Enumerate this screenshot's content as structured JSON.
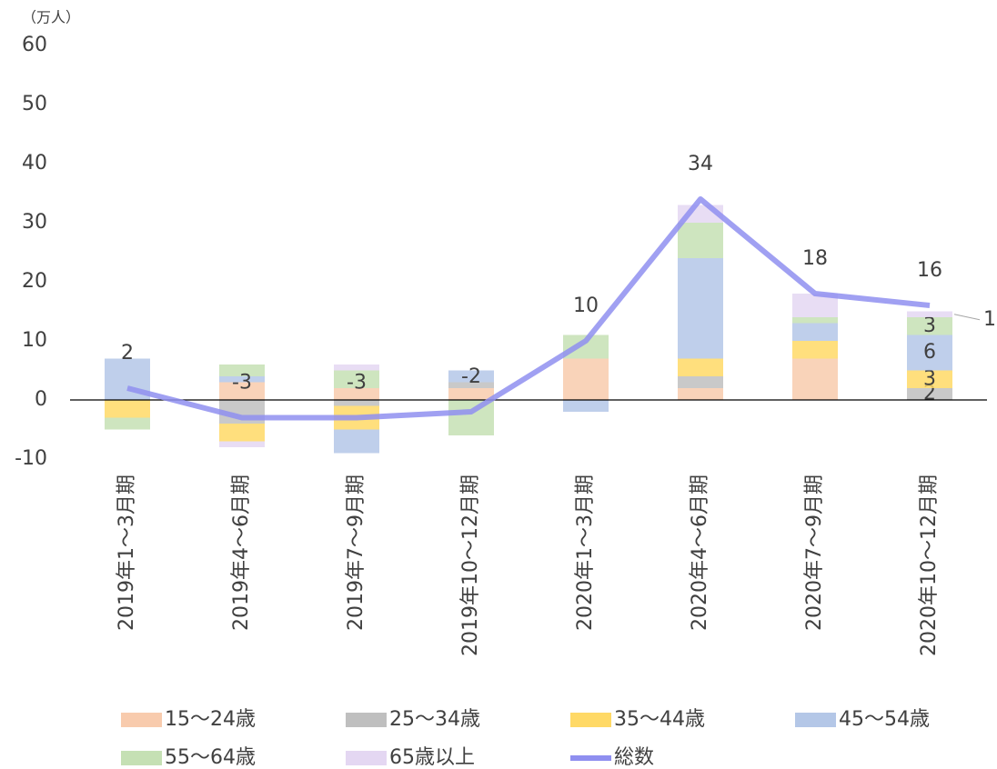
{
  "chart_data": {
    "type": "bar",
    "unit_label": "（万人）",
    "categories": [
      "2019年1～3月期",
      "2019年4～6月期",
      "2019年7～9月期",
      "2019年10～12月期",
      "2020年1～3月期",
      "2020年4～6月期",
      "2020年7～9月期",
      "2020年10～12月期"
    ],
    "series": [
      {
        "name": "15～24歳",
        "color": "#f8cbad",
        "values": [
          0,
          3,
          2,
          2,
          7,
          2,
          7,
          0
        ]
      },
      {
        "name": "25～34歳",
        "color": "#bfbfbf",
        "values": [
          0,
          -4,
          -1,
          1,
          0,
          2,
          0,
          2
        ]
      },
      {
        "name": "35～44歳",
        "color": "#ffd966",
        "values": [
          -3,
          -3,
          -4,
          0,
          0,
          3,
          3,
          3
        ]
      },
      {
        "name": "45～54歳",
        "color": "#b4c7e7",
        "values": [
          7,
          1,
          -4,
          2,
          -2,
          17,
          3,
          6
        ]
      },
      {
        "name": "55～64歳",
        "color": "#c5e0b4",
        "values": [
          -2,
          2,
          3,
          -6,
          4,
          6,
          1,
          3
        ]
      },
      {
        "name": "65歳以上",
        "color": "#e4d7f2",
        "values": [
          0,
          -1,
          1,
          0,
          0,
          3,
          4,
          1
        ]
      },
      {
        "name": "総数",
        "type": "line",
        "color": "#8f8ff0",
        "values": [
          2,
          -3,
          -3,
          -2,
          10,
          34,
          18,
          16
        ]
      }
    ],
    "ylim": [
      -10,
      60
    ],
    "yticks": [
      -10,
      0,
      10,
      20,
      30,
      40,
      50,
      60
    ],
    "grid": false
  }
}
